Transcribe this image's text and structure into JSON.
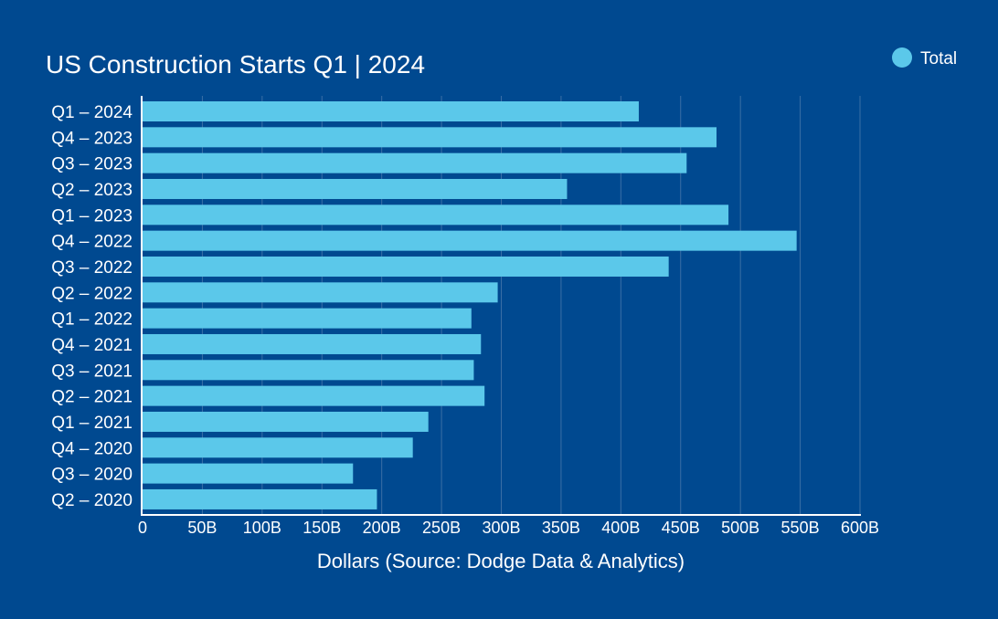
{
  "chart_data": {
    "type": "bar",
    "orientation": "horizontal",
    "title": "US Construction Starts Q1 | 2024",
    "xlabel": "Dollars (Source: Dodge Data & Analytics)",
    "ylabel": "",
    "xlim": [
      0,
      600000000000
    ],
    "grid": true,
    "legend_position": "top-right",
    "x_ticks": [
      {
        "value": 0,
        "label": "0"
      },
      {
        "value": 50000000000,
        "label": "50B"
      },
      {
        "value": 100000000000,
        "label": "100B"
      },
      {
        "value": 150000000000,
        "label": "150B"
      },
      {
        "value": 200000000000,
        "label": "200B"
      },
      {
        "value": 250000000000,
        "label": "250B"
      },
      {
        "value": 300000000000,
        "label": "300B"
      },
      {
        "value": 350000000000,
        "label": "350B"
      },
      {
        "value": 400000000000,
        "label": "400B"
      },
      {
        "value": 450000000000,
        "label": "450B"
      },
      {
        "value": 500000000000,
        "label": "500B"
      },
      {
        "value": 550000000000,
        "label": "550B"
      },
      {
        "value": 600000000000,
        "label": "600B"
      }
    ],
    "categories": [
      "Q1 – 2024",
      "Q4 – 2023",
      "Q3 – 2023",
      "Q2 – 2023",
      "Q1 – 2023",
      "Q4 – 2022",
      "Q3 – 2022",
      "Q2 – 2022",
      "Q1 – 2022",
      "Q4 – 2021",
      "Q3 – 2021",
      "Q2 – 2021",
      "Q1 – 2021",
      "Q4 – 2020",
      "Q3 – 2020",
      "Q2 – 2020"
    ],
    "series": [
      {
        "name": "Total",
        "color": "#5bc8ea",
        "values": [
          415000000000,
          480000000000,
          455000000000,
          355000000000,
          490000000000,
          547000000000,
          440000000000,
          297000000000,
          275000000000,
          283000000000,
          277000000000,
          286000000000,
          239000000000,
          226000000000,
          176000000000,
          196000000000
        ]
      }
    ]
  },
  "colors": {
    "background": "#004990",
    "bar": "#5bc8ea",
    "gridline": "#3a6fa6",
    "axis": "#ffffff",
    "text": "#ffffff"
  }
}
